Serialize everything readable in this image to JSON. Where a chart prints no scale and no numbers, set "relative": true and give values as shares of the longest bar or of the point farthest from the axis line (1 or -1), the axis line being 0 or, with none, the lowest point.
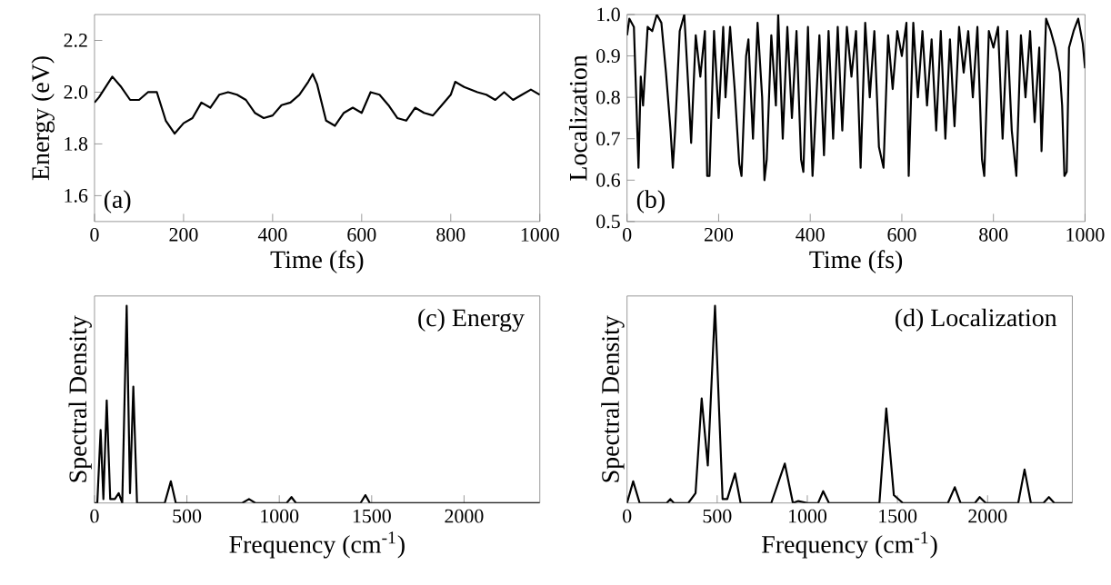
{
  "chart_data": [
    {
      "type": "line",
      "xlabel": "Time (fs)",
      "ylabel": "Energy (eV)",
      "annotations": [
        "(a)"
      ],
      "xlim": [
        0,
        1000
      ],
      "ylim": [
        1.5,
        2.3
      ],
      "xticks": [
        0,
        200,
        400,
        600,
        800,
        1000
      ],
      "yticks": [
        1.6,
        1.8,
        {
          "value": 2.0,
          "label": "2.0"
        },
        2.2
      ],
      "marker": "none",
      "line_style": "solid",
      "series": [
        {
          "color": "#000000",
          "x": [
            0,
            10,
            40,
            60,
            80,
            100,
            120,
            140,
            160,
            180,
            200,
            220,
            240,
            260,
            280,
            300,
            320,
            340,
            360,
            380,
            400,
            420,
            440,
            460,
            480,
            490,
            500,
            520,
            540,
            560,
            580,
            600,
            620,
            640,
            660,
            680,
            700,
            720,
            740,
            760,
            780,
            800,
            810,
            830,
            860,
            880,
            900,
            920,
            940,
            960,
            980,
            1000
          ],
          "values": [
            1.96,
            1.98,
            2.06,
            2.02,
            1.97,
            1.97,
            2.0,
            2.0,
            1.89,
            1.84,
            1.88,
            1.9,
            1.96,
            1.94,
            1.99,
            2.0,
            1.99,
            1.97,
            1.92,
            1.9,
            1.91,
            1.95,
            1.96,
            1.99,
            2.04,
            2.07,
            2.03,
            1.89,
            1.87,
            1.92,
            1.94,
            1.92,
            2.0,
            1.99,
            1.95,
            1.9,
            1.89,
            1.94,
            1.92,
            1.91,
            1.95,
            1.99,
            2.04,
            2.02,
            2.0,
            1.99,
            1.97,
            2.0,
            1.97,
            1.99,
            2.01,
            1.99
          ]
        }
      ]
    },
    {
      "type": "line",
      "xlabel": "Time (fs)",
      "ylabel": "Localization",
      "annotations": [
        "(b)"
      ],
      "xlim": [
        0,
        1000
      ],
      "ylim": [
        0.5,
        1.0
      ],
      "xticks": [
        0,
        200,
        400,
        600,
        800,
        1000
      ],
      "yticks": [
        0.5,
        0.6,
        0.7,
        0.8,
        0.9,
        {
          "value": 1.0,
          "label": "1.0"
        }
      ],
      "marker": "none",
      "line_style": "solid",
      "series": [
        {
          "color": "#000000",
          "x": [
            0,
            5,
            15,
            20,
            25,
            30,
            35,
            45,
            55,
            65,
            75,
            85,
            95,
            100,
            105,
            115,
            125,
            135,
            140,
            150,
            160,
            170,
            175,
            180,
            190,
            200,
            210,
            215,
            225,
            235,
            245,
            250,
            260,
            265,
            275,
            285,
            295,
            300,
            305,
            315,
            325,
            330,
            340,
            350,
            360,
            370,
            380,
            385,
            395,
            405,
            410,
            420,
            430,
            440,
            450,
            460,
            470,
            480,
            490,
            500,
            510,
            520,
            530,
            540,
            550,
            560,
            570,
            580,
            590,
            600,
            610,
            615,
            625,
            635,
            645,
            655,
            665,
            675,
            685,
            695,
            705,
            715,
            725,
            735,
            745,
            755,
            765,
            775,
            780,
            790,
            800,
            810,
            820,
            830,
            840,
            850,
            860,
            870,
            880,
            890,
            900,
            905,
            915,
            925,
            935,
            945,
            950,
            955,
            960,
            965,
            975,
            985,
            995,
            1000
          ],
          "values": [
            0.95,
            0.99,
            0.97,
            0.8,
            0.63,
            0.85,
            0.78,
            0.97,
            0.96,
            1.0,
            0.98,
            0.86,
            0.72,
            0.63,
            0.72,
            0.96,
            1.0,
            0.8,
            0.69,
            0.95,
            0.85,
            0.96,
            0.61,
            0.61,
            0.96,
            0.75,
            0.97,
            0.8,
            0.97,
            0.82,
            0.64,
            0.61,
            0.9,
            0.94,
            0.7,
            0.98,
            0.8,
            0.6,
            0.65,
            0.95,
            0.78,
            1.0,
            0.7,
            0.97,
            0.75,
            0.96,
            0.65,
            0.62,
            0.97,
            0.61,
            0.72,
            0.95,
            0.66,
            0.96,
            0.7,
            0.97,
            0.72,
            0.97,
            0.85,
            0.96,
            0.63,
            0.98,
            0.8,
            0.96,
            0.68,
            0.63,
            0.95,
            0.82,
            0.96,
            0.9,
            0.98,
            0.61,
            0.98,
            0.8,
            0.96,
            0.78,
            0.94,
            0.72,
            0.96,
            0.7,
            0.94,
            0.73,
            0.97,
            0.86,
            0.96,
            0.8,
            0.97,
            0.65,
            0.61,
            0.96,
            0.92,
            0.97,
            0.7,
            0.96,
            0.72,
            0.61,
            0.95,
            0.8,
            0.96,
            0.74,
            0.92,
            0.67,
            0.99,
            0.96,
            0.92,
            0.86,
            0.78,
            0.61,
            0.62,
            0.92,
            0.96,
            0.99,
            0.93,
            0.87
          ]
        }
      ]
    },
    {
      "type": "line",
      "relative": true,
      "xlabel": "Frequency (cm$^{-1}$)",
      "ylabel": "Spectral Density",
      "annotations": [
        "(c) Energy"
      ],
      "xlim": [
        0,
        2410
      ],
      "xticks": [
        0,
        500,
        1000,
        1500,
        2000
      ],
      "marker": "none",
      "line_style": "solid",
      "series": [
        {
          "color": "#000000",
          "x": [
            0,
            15,
            33,
            48,
            66,
            85,
            110,
            131,
            150,
            174,
            192,
            210,
            230,
            380,
            413,
            440,
            800,
            836,
            870,
            1040,
            1066,
            1090,
            1440,
            1466,
            1490,
            2410
          ],
          "values": [
            0,
            0,
            0.37,
            0.02,
            0.52,
            0.02,
            0.02,
            0.05,
            0,
            1.0,
            0.05,
            0.59,
            0,
            0,
            0.11,
            0,
            0,
            0.02,
            0,
            0,
            0.03,
            0,
            0,
            0.04,
            0,
            0
          ]
        }
      ]
    },
    {
      "type": "line",
      "relative": true,
      "xlabel": "Frequency (cm$^{-1}$)",
      "ylabel": "Spectral Density",
      "annotations": [
        "(d) Localization"
      ],
      "xlim": [
        0,
        2470
      ],
      "xticks": [
        0,
        500,
        1000,
        1500,
        2000
      ],
      "marker": "none",
      "line_style": "solid",
      "series": [
        {
          "color": "#000000",
          "x": [
            0,
            34,
            70,
            220,
            240,
            260,
            340,
            380,
            414,
            448,
            488,
            530,
            556,
            599,
            630,
            800,
            875,
            920,
            950,
            1000,
            1060,
            1088,
            1120,
            1400,
            1438,
            1480,
            1530,
            1780,
            1818,
            1850,
            1930,
            1956,
            1990,
            2170,
            2205,
            2240,
            2310,
            2340,
            2370,
            2470
          ],
          "values": [
            0,
            0.11,
            0,
            0,
            0.02,
            0,
            0,
            0.05,
            0.53,
            0.19,
            1.0,
            0.02,
            0.02,
            0.15,
            0,
            0,
            0.2,
            0,
            0.01,
            0,
            0,
            0.06,
            0,
            0,
            0.48,
            0.04,
            0,
            0,
            0.08,
            0,
            0,
            0.03,
            0,
            0,
            0.17,
            0,
            0,
            0.03,
            0,
            0
          ]
        }
      ]
    }
  ]
}
